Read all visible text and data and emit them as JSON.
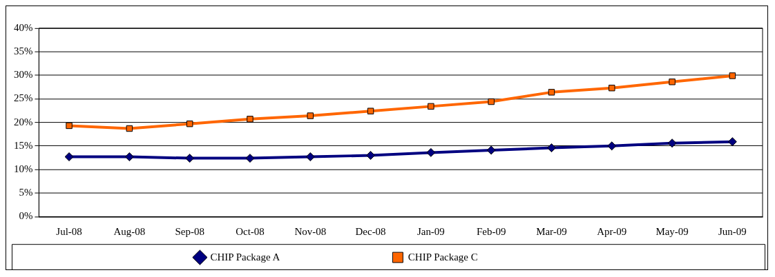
{
  "chart_data": {
    "type": "line",
    "categories": [
      "Jul-08",
      "Aug-08",
      "Sep-08",
      "Oct-08",
      "Nov-08",
      "Dec-08",
      "Jan-09",
      "Feb-09",
      "Mar-09",
      "Apr-09",
      "May-09",
      "Jun-09"
    ],
    "series": [
      {
        "name": "CHIP Package A",
        "color": "#000080",
        "marker": "diamond",
        "values": [
          12.7,
          12.7,
          12.4,
          12.4,
          12.7,
          13.0,
          13.6,
          14.1,
          14.6,
          15.0,
          15.6,
          15.9
        ]
      },
      {
        "name": "CHIP Package C",
        "color": "#ff6600",
        "marker": "square",
        "values": [
          19.3,
          18.7,
          19.7,
          20.7,
          21.4,
          22.4,
          23.4,
          24.4,
          26.4,
          27.3,
          28.6,
          29.9
        ]
      }
    ],
    "ylim": [
      0,
      40
    ],
    "yticks": [
      {
        "value": 0,
        "label": "0%"
      },
      {
        "value": 5,
        "label": "5%"
      },
      {
        "value": 10,
        "label": "10%"
      },
      {
        "value": 15,
        "label": "15%"
      },
      {
        "value": 20,
        "label": "20%"
      },
      {
        "value": 25,
        "label": "25%"
      },
      {
        "value": 30,
        "label": "30%"
      },
      {
        "value": 35,
        "label": "35%"
      },
      {
        "value": 40,
        "label": "40%"
      }
    ],
    "grid": "y",
    "legend": "bottom",
    "line_style": "solid"
  }
}
